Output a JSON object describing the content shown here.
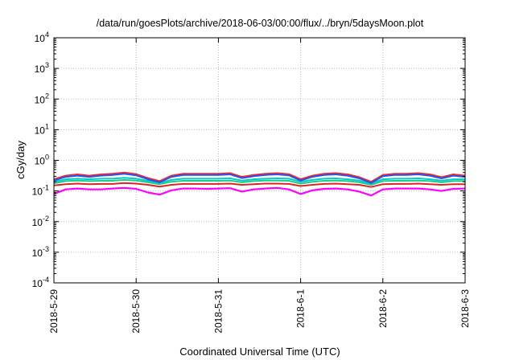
{
  "chart_data": {
    "type": "line",
    "title": "/data/run/goesPlots/archive/2018-06-03/00:00/flux/../bryn/5daysMoon.plot",
    "xlabel": "Coordinated Universal Time (UTC)",
    "ylabel": "cGy/day",
    "y_scale": "log",
    "ylim_exp": [
      -4,
      4
    ],
    "y_ticks": [
      {
        "base": "10",
        "exp": "-4"
      },
      {
        "base": "10",
        "exp": "-3"
      },
      {
        "base": "10",
        "exp": "-2"
      },
      {
        "base": "10",
        "exp": "-1"
      },
      {
        "base": "10",
        "exp": "0"
      },
      {
        "base": "10",
        "exp": "1"
      },
      {
        "base": "10",
        "exp": "2"
      },
      {
        "base": "10",
        "exp": "3"
      },
      {
        "base": "10",
        "exp": "4"
      }
    ],
    "xlim": [
      "2018-05-29 00:00",
      "2018-06-03 00:00"
    ],
    "x_ticks": [
      "2018-5-29",
      "2018-5-30",
      "2018-5-31",
      "2018-6-1",
      "2018-6-2",
      "2018-6-3"
    ],
    "grid": true,
    "series": [
      {
        "color": "#ff00ff",
        "log10_values": [
          -1.1,
          -0.95,
          -0.92,
          -0.95,
          -0.95,
          -0.92,
          -0.9,
          -0.93,
          -1.05,
          -1.12,
          -0.98,
          -0.92,
          -0.92,
          -0.93,
          -0.92,
          -0.91,
          -1.02,
          -0.95,
          -0.92,
          -0.9,
          -0.95,
          -1.1,
          -0.98,
          -0.93,
          -0.92,
          -0.95,
          -1.02,
          -1.15,
          -0.95,
          -0.92,
          -0.92,
          -0.92,
          -0.95,
          -1.0,
          -0.93,
          -0.92
        ]
      },
      {
        "color": "#dd2222",
        "log10_values": [
          -0.82,
          -0.78,
          -0.76,
          -0.78,
          -0.77,
          -0.77,
          -0.74,
          -0.76,
          -0.8,
          -0.86,
          -0.8,
          -0.77,
          -0.77,
          -0.77,
          -0.77,
          -0.76,
          -0.8,
          -0.78,
          -0.76,
          -0.76,
          -0.77,
          -0.84,
          -0.8,
          -0.77,
          -0.76,
          -0.78,
          -0.8,
          -0.87,
          -0.78,
          -0.77,
          -0.77,
          -0.76,
          -0.78,
          -0.8,
          -0.78,
          -0.78
        ]
      },
      {
        "color": "#22cc88",
        "log10_values": [
          -0.75,
          -0.68,
          -0.66,
          -0.68,
          -0.67,
          -0.67,
          -0.64,
          -0.66,
          -0.72,
          -0.78,
          -0.7,
          -0.67,
          -0.67,
          -0.67,
          -0.67,
          -0.66,
          -0.72,
          -0.68,
          -0.66,
          -0.66,
          -0.67,
          -0.76,
          -0.7,
          -0.67,
          -0.66,
          -0.68,
          -0.72,
          -0.8,
          -0.68,
          -0.67,
          -0.67,
          -0.66,
          -0.68,
          -0.72,
          -0.68,
          -0.68
        ]
      },
      {
        "color": "#00cccc",
        "log10_values": [
          -0.7,
          -0.62,
          -0.6,
          -0.62,
          -0.6,
          -0.6,
          -0.57,
          -0.6,
          -0.67,
          -0.74,
          -0.64,
          -0.6,
          -0.6,
          -0.6,
          -0.6,
          -0.59,
          -0.66,
          -0.62,
          -0.6,
          -0.59,
          -0.6,
          -0.7,
          -0.64,
          -0.6,
          -0.59,
          -0.62,
          -0.66,
          -0.76,
          -0.62,
          -0.6,
          -0.6,
          -0.59,
          -0.62,
          -0.66,
          -0.62,
          -0.62
        ]
      },
      {
        "color": "#ff2222",
        "log10_values": [
          -0.62,
          -0.5,
          -0.46,
          -0.5,
          -0.46,
          -0.44,
          -0.4,
          -0.45,
          -0.58,
          -0.68,
          -0.5,
          -0.44,
          -0.44,
          -0.44,
          -0.44,
          -0.42,
          -0.54,
          -0.48,
          -0.44,
          -0.42,
          -0.45,
          -0.62,
          -0.5,
          -0.44,
          -0.42,
          -0.46,
          -0.55,
          -0.7,
          -0.48,
          -0.44,
          -0.44,
          -0.42,
          -0.46,
          -0.55,
          -0.46,
          -0.5
        ]
      },
      {
        "color": "#2255ee",
        "log10_values": [
          -0.66,
          -0.54,
          -0.5,
          -0.54,
          -0.5,
          -0.48,
          -0.44,
          -0.49,
          -0.62,
          -0.72,
          -0.54,
          -0.48,
          -0.48,
          -0.48,
          -0.48,
          -0.46,
          -0.58,
          -0.52,
          -0.48,
          -0.46,
          -0.49,
          -0.66,
          -0.54,
          -0.48,
          -0.46,
          -0.5,
          -0.59,
          -0.74,
          -0.52,
          -0.48,
          -0.48,
          -0.46,
          -0.5,
          -0.59,
          -0.5,
          -0.54
        ]
      }
    ]
  }
}
